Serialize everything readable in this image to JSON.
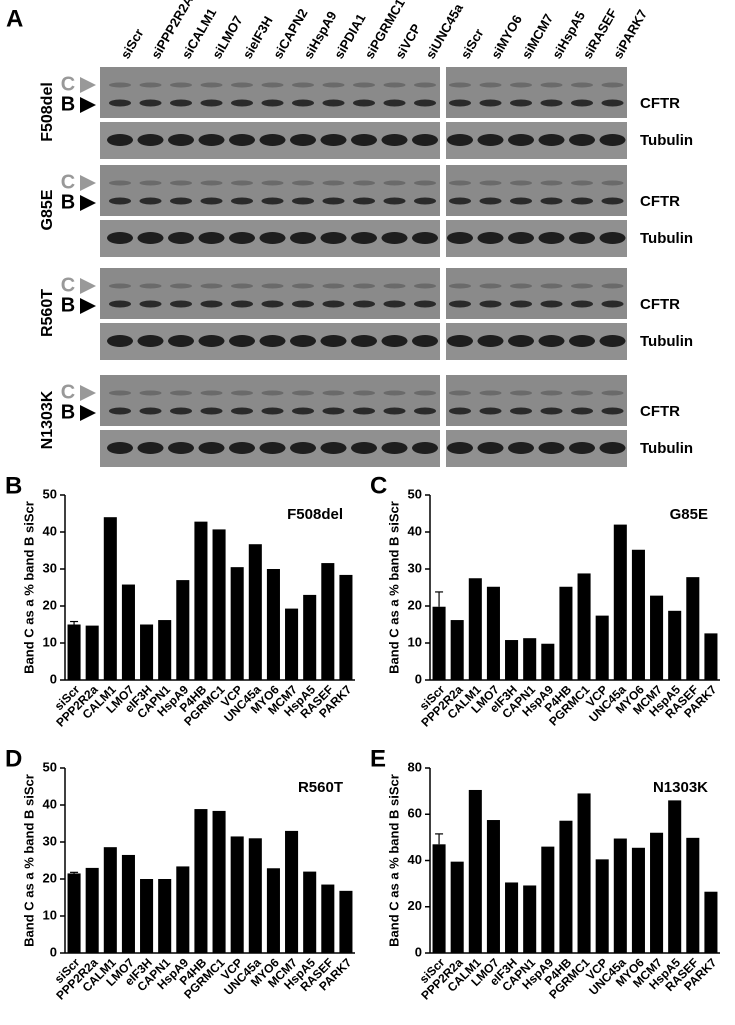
{
  "blots": {
    "panel_label": "A",
    "lanes_left": [
      "siScr",
      "siPPP2R2A",
      "siCALM1",
      "siLMO7",
      "sieIF3H",
      "siCAPN2",
      "siHspA9",
      "siPDIA1",
      "siPGRMC1",
      "siVCP",
      "siUNC45a"
    ],
    "lanes_right": [
      "siScr",
      "siMYO6",
      "siMCM7",
      "siHspA5",
      "siRASEF",
      "siPARK7"
    ],
    "rows": [
      {
        "mutation": "F508del",
        "band_c": "C",
        "band_b": "B",
        "cftr": "CFTR",
        "tubulin": "Tubulin"
      },
      {
        "mutation": "G85E",
        "band_c": "C",
        "band_b": "B",
        "cftr": "CFTR",
        "tubulin": "Tubulin"
      },
      {
        "mutation": "R560T",
        "band_c": "C",
        "band_b": "B",
        "cftr": "CFTR",
        "tubulin": "Tubulin"
      },
      {
        "mutation": "N1303K",
        "band_c": "C",
        "band_b": "B",
        "cftr": "CFTR",
        "tubulin": "Tubulin"
      }
    ]
  },
  "chart_data": [
    {
      "type": "bar",
      "panel_label": "B",
      "title": "F508del",
      "y_label": "Band C as a % band B siScr",
      "color": "#000000",
      "categories": [
        "siScr",
        "PPP2R2a",
        "CALM1",
        "LMO7",
        "eIF3H",
        "CAPN1",
        "HspA9",
        "P4HB",
        "PGRMC1",
        "VCP",
        "UNC45a",
        "MYO6",
        "MCM7",
        "HspA5",
        "RASEF",
        "PARK7"
      ],
      "values": [
        15,
        14.7,
        44,
        25.8,
        15,
        16.2,
        27,
        42.8,
        40.7,
        30.5,
        36.7,
        30,
        19.3,
        23,
        31.6,
        28.4
      ],
      "errors": [
        0.8,
        null,
        null,
        null,
        null,
        null,
        null,
        null,
        null,
        null,
        null,
        null,
        null,
        null,
        null,
        null
      ],
      "ylim": [
        0,
        50
      ],
      "yticks": [
        0,
        10,
        20,
        30,
        40,
        50
      ]
    },
    {
      "type": "bar",
      "panel_label": "C",
      "title": "G85E",
      "y_label": "Band C as a % band B siScr",
      "color": "#000000",
      "categories": [
        "siScr",
        "PPP2R2a",
        "CALM1",
        "LMO7",
        "eIF3H",
        "CAPN1",
        "HspA9",
        "P4HB",
        "PGRMC1",
        "VCP",
        "UNC45a",
        "MYO6",
        "MCM7",
        "HspA5",
        "RASEF",
        "PARK7"
      ],
      "values": [
        19.8,
        16.2,
        27.5,
        25.2,
        10.8,
        11.3,
        9.8,
        25.2,
        28.8,
        17.4,
        42,
        35.2,
        22.8,
        18.7,
        27.8,
        12.6
      ],
      "errors": [
        4,
        null,
        null,
        null,
        null,
        null,
        null,
        null,
        null,
        null,
        null,
        null,
        null,
        null,
        null,
        null
      ],
      "ylim": [
        0,
        50
      ],
      "yticks": [
        0,
        10,
        20,
        30,
        40,
        50
      ]
    },
    {
      "type": "bar",
      "panel_label": "D",
      "title": "R560T",
      "y_label": "Band C as a % band B siScr",
      "color": "#000000",
      "categories": [
        "siScr",
        "PPP2R2a",
        "CALM1",
        "LMO7",
        "eIF3H",
        "CAPN1",
        "HspA9",
        "P4HB",
        "PGRMC1",
        "VCP",
        "UNC45a",
        "MYO6",
        "MCM7",
        "HspA5",
        "RASEF",
        "PARK7"
      ],
      "values": [
        21.5,
        23,
        28.6,
        26.5,
        20,
        20,
        23.4,
        38.9,
        38.4,
        31.5,
        31,
        22.9,
        33,
        22,
        18.5,
        16.8
      ],
      "errors": [
        0.3,
        null,
        null,
        null,
        null,
        null,
        null,
        null,
        null,
        null,
        null,
        null,
        null,
        null,
        null,
        null
      ],
      "ylim": [
        0,
        50
      ],
      "yticks": [
        0,
        10,
        20,
        30,
        40,
        50
      ]
    },
    {
      "type": "bar",
      "panel_label": "E",
      "title": "N1303K",
      "y_label": "Band C as a % band B siScr",
      "color": "#000000",
      "categories": [
        "siScr",
        "PPP2R2a",
        "CALM1",
        "LMO7",
        "eIF3H",
        "CAPN1",
        "HspA9",
        "P4HB",
        "PGRMC1",
        "VCP",
        "UNC45a",
        "MYO6",
        "MCM7",
        "HspA5",
        "RASEF",
        "PARK7"
      ],
      "values": [
        47,
        39.5,
        70.5,
        57.5,
        30.5,
        29.2,
        46,
        57.2,
        69,
        40.5,
        49.5,
        45.5,
        52,
        66,
        49.8,
        26.5
      ],
      "errors": [
        4.5,
        null,
        null,
        null,
        null,
        null,
        null,
        null,
        null,
        null,
        null,
        null,
        null,
        null,
        null,
        null
      ],
      "ylim": [
        0,
        80
      ],
      "yticks": [
        0,
        20,
        40,
        60,
        80
      ]
    }
  ]
}
